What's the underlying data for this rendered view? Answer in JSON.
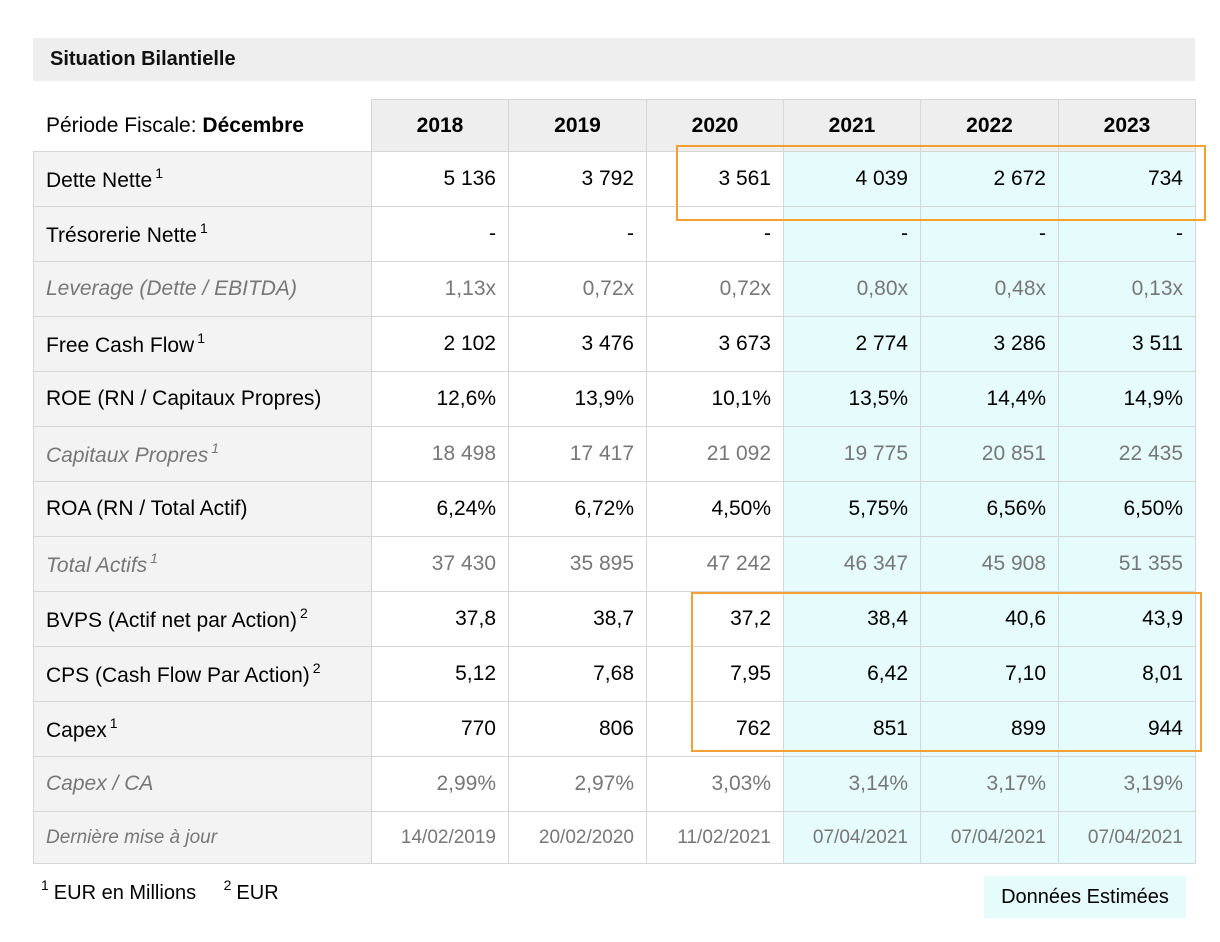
{
  "title": "Situation Bilantielle",
  "header": {
    "periode_label": "Période Fiscale:",
    "periode_value": "Décembre",
    "years": [
      "2018",
      "2019",
      "2020",
      "2021",
      "2022",
      "2023"
    ]
  },
  "rows": [
    {
      "label": "Dette Nette",
      "note": "1",
      "italic": false,
      "values": [
        "5 136",
        "3 792",
        "3 561",
        "4 039",
        "2 672",
        "734"
      ]
    },
    {
      "label": "Trésorerie Nette",
      "note": "1",
      "italic": false,
      "values": [
        "-",
        "-",
        "-",
        "-",
        "-",
        "-"
      ]
    },
    {
      "label": "Leverage (Dette / EBITDA)",
      "note": "",
      "italic": true,
      "values": [
        "1,13x",
        "0,72x",
        "0,72x",
        "0,80x",
        "0,48x",
        "0,13x"
      ]
    },
    {
      "label": "Free Cash Flow",
      "note": "1",
      "italic": false,
      "values": [
        "2 102",
        "3 476",
        "3 673",
        "2 774",
        "3 286",
        "3 511"
      ]
    },
    {
      "label": "ROE (RN / Capitaux Propres)",
      "note": "",
      "italic": false,
      "values": [
        "12,6%",
        "13,9%",
        "10,1%",
        "13,5%",
        "14,4%",
        "14,9%"
      ]
    },
    {
      "label": "Capitaux Propres",
      "note": "1",
      "italic": true,
      "values": [
        "18 498",
        "17 417",
        "21 092",
        "19 775",
        "20 851",
        "22 435"
      ]
    },
    {
      "label": "ROA (RN / Total Actif)",
      "note": "",
      "italic": false,
      "values": [
        "6,24%",
        "6,72%",
        "4,50%",
        "5,75%",
        "6,56%",
        "6,50%"
      ]
    },
    {
      "label": "Total Actifs",
      "note": "1",
      "italic": true,
      "values": [
        "37 430",
        "35 895",
        "47 242",
        "46 347",
        "45 908",
        "51 355"
      ]
    },
    {
      "label": "BVPS (Actif net par Action)",
      "note": "2",
      "italic": false,
      "values": [
        "37,8",
        "38,7",
        "37,2",
        "38,4",
        "40,6",
        "43,9"
      ]
    },
    {
      "label": "CPS (Cash Flow Par Action)",
      "note": "2",
      "italic": false,
      "values": [
        "5,12",
        "7,68",
        "7,95",
        "6,42",
        "7,10",
        "8,01"
      ]
    },
    {
      "label": "Capex",
      "note": "1",
      "italic": false,
      "values": [
        "770",
        "806",
        "762",
        "851",
        "899",
        "944"
      ]
    },
    {
      "label": "Capex / CA",
      "note": "",
      "italic": true,
      "values": [
        "2,99%",
        "2,97%",
        "3,03%",
        "3,14%",
        "3,17%",
        "3,19%"
      ]
    },
    {
      "label": "Dernière mise à jour",
      "note": "",
      "italic": true,
      "dates": true,
      "values": [
        "14/02/2019",
        "20/02/2020",
        "11/02/2021",
        "07/04/2021",
        "07/04/2021",
        "07/04/2021"
      ]
    }
  ],
  "footnotes": [
    {
      "mark": "1",
      "text": "EUR en Millions"
    },
    {
      "mark": "2",
      "text": "EUR"
    }
  ],
  "legend": "Données Estimées",
  "colors": {
    "estimated_bg": "#e6fbfb",
    "highlight_border": "#f5a033",
    "header_bg": "#eeeeee"
  }
}
